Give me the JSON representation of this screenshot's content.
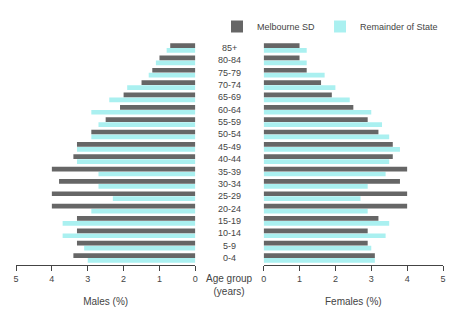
{
  "chart_data": [
    {
      "type": "bar",
      "orientation": "horizontal",
      "categories": [
        "0-4",
        "5-9",
        "10-14",
        "15-19",
        "20-24",
        "25-29",
        "30-34",
        "35-39",
        "40-44",
        "45-49",
        "50-54",
        "55-59",
        "60-64",
        "65-69",
        "70-74",
        "75-79",
        "80-84",
        "85+"
      ],
      "series": [
        {
          "name": "Melbourne SD",
          "color": "#666666",
          "values": [
            3.4,
            3.3,
            3.3,
            3.3,
            4.0,
            4.0,
            3.8,
            4.0,
            3.4,
            3.3,
            2.9,
            2.5,
            2.1,
            2.0,
            1.5,
            1.2,
            1.0,
            0.7
          ]
        },
        {
          "name": "Remainder of State",
          "color": "#aaf0f0",
          "values": [
            3.0,
            3.1,
            3.7,
            3.7,
            2.9,
            2.3,
            2.7,
            2.7,
            3.3,
            3.3,
            2.9,
            2.7,
            2.9,
            2.4,
            1.9,
            1.3,
            1.1,
            0.8
          ]
        }
      ],
      "x_label": "Males (%)",
      "y_label": "Age group\n(years)",
      "xlim": [
        5.0,
        0
      ],
      "xticks": [
        0,
        1,
        2,
        3,
        4,
        5
      ],
      "grid": false
    },
    {
      "type": "bar",
      "orientation": "horizontal",
      "categories": [
        "0-4",
        "5-9",
        "10-14",
        "15-19",
        "20-24",
        "25-29",
        "30-34",
        "35-39",
        "40-44",
        "45-49",
        "50-54",
        "55-59",
        "60-64",
        "65-69",
        "70-74",
        "75-79",
        "80-84",
        "85+"
      ],
      "series": [
        {
          "name": "Melbourne SD",
          "color": "#666666",
          "values": [
            3.1,
            2.9,
            2.9,
            3.2,
            4.0,
            4.0,
            3.8,
            4.0,
            3.6,
            3.6,
            3.2,
            2.9,
            2.5,
            1.9,
            1.6,
            1.2,
            1.0,
            1.0
          ]
        },
        {
          "name": "Remainder of State",
          "color": "#aaf0f0",
          "values": [
            3.1,
            3.0,
            3.4,
            3.5,
            2.9,
            2.7,
            2.9,
            3.4,
            3.5,
            3.8,
            3.5,
            3.3,
            3.0,
            2.4,
            2.0,
            1.7,
            1.2,
            1.2
          ]
        }
      ],
      "x_label": "Females (%)",
      "xlim": [
        0,
        5.0
      ],
      "xticks": [
        0,
        1,
        2,
        3,
        4,
        5
      ],
      "grid": false,
      "legend": "upper right"
    }
  ]
}
